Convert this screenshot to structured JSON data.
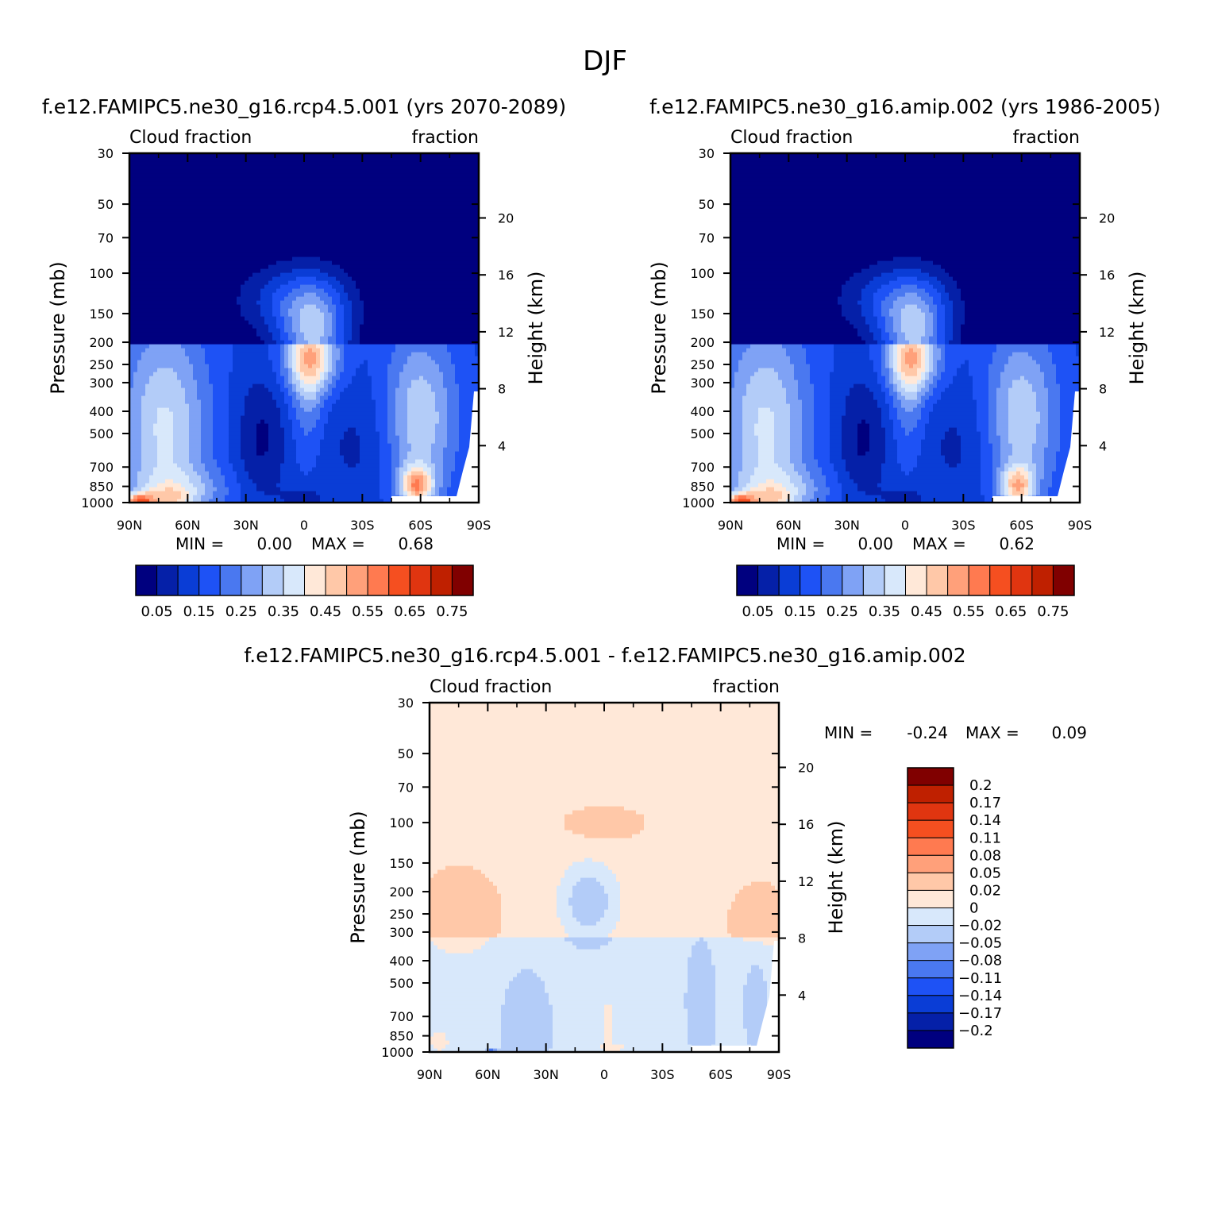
{
  "figure": {
    "title": "DJF",
    "x_ticks": [
      "90N",
      "60N",
      "30N",
      "0",
      "30S",
      "60S",
      "90S"
    ],
    "pressure_ticks": [
      "30",
      "50",
      "70",
      "100",
      "150",
      "200",
      "250",
      "300",
      "400",
      "500",
      "700",
      "850",
      "1000"
    ],
    "height_ticks": [
      "20",
      "16",
      "12",
      "8",
      "4"
    ],
    "ylabel_left": "Pressure (mb)",
    "ylabel_right": "Height (km)",
    "min_label": "MIN =",
    "max_label": "MAX ="
  },
  "chart_data": [
    {
      "type": "heatmap",
      "title": "f.e12.FAMIPC5.ne30_g16.rcp4.5.001 (yrs 2070-2089)",
      "subtitle_left": "Cloud fraction",
      "subtitle_right": "fraction",
      "x_range": [
        90,
        -90
      ],
      "y_range_mb": [
        1000,
        30
      ],
      "min": "0.00",
      "max": "0.68",
      "levels": [
        0.05,
        0.1,
        0.15,
        0.2,
        0.25,
        0.3,
        0.35,
        0.4,
        0.45,
        0.5,
        0.55,
        0.6,
        0.65,
        0.7,
        0.75
      ],
      "colorbar_labels": [
        "0.05",
        "0.15",
        "0.25",
        "0.35",
        "0.45",
        "0.55",
        "0.65",
        "0.75"
      ],
      "colors": [
        "#00007F",
        "#0520A8",
        "#0A3DD6",
        "#1E52F5",
        "#4A78F0",
        "#7FA2F5",
        "#B3CCF8",
        "#D8E8FB",
        "#FFE8D8",
        "#FFC8A8",
        "#FFA07A",
        "#FF7A50",
        "#F54F20",
        "#E03510",
        "#BF2000",
        "#800000"
      ]
    },
    {
      "type": "heatmap",
      "title": "f.e12.FAMIPC5.ne30_g16.amip.002 (yrs 1986-2005)",
      "subtitle_left": "Cloud fraction",
      "subtitle_right": "fraction",
      "x_range": [
        90,
        -90
      ],
      "y_range_mb": [
        1000,
        30
      ],
      "min": "0.00",
      "max": "0.62",
      "levels": [
        0.05,
        0.1,
        0.15,
        0.2,
        0.25,
        0.3,
        0.35,
        0.4,
        0.45,
        0.5,
        0.55,
        0.6,
        0.65,
        0.7,
        0.75
      ],
      "colorbar_labels": [
        "0.05",
        "0.15",
        "0.25",
        "0.35",
        "0.45",
        "0.55",
        "0.65",
        "0.75"
      ],
      "colors": [
        "#00007F",
        "#0520A8",
        "#0A3DD6",
        "#1E52F5",
        "#4A78F0",
        "#7FA2F5",
        "#B3CCF8",
        "#D8E8FB",
        "#FFE8D8",
        "#FFC8A8",
        "#FFA07A",
        "#FF7A50",
        "#F54F20",
        "#E03510",
        "#BF2000",
        "#800000"
      ]
    },
    {
      "type": "heatmap",
      "title": "f.e12.FAMIPC5.ne30_g16.rcp4.5.001 - f.e12.FAMIPC5.ne30_g16.amip.002",
      "subtitle_left": "Cloud fraction",
      "subtitle_right": "fraction",
      "x_range": [
        90,
        -90
      ],
      "y_range_mb": [
        1000,
        30
      ],
      "min": "-0.24",
      "max": "0.09",
      "levels": [
        -0.2,
        -0.17,
        -0.14,
        -0.11,
        -0.08,
        -0.05,
        -0.02,
        0,
        0.02,
        0.05,
        0.08,
        0.11,
        0.14,
        0.17,
        0.2
      ],
      "colorbar_labels": [
        "0.2",
        "0.17",
        "0.14",
        "0.11",
        "0.08",
        "0.05",
        "0.02",
        "0",
        "-0.02",
        "-0.05",
        "-0.08",
        "-0.11",
        "-0.14",
        "-0.17",
        "-0.2"
      ],
      "colors": [
        "#00007F",
        "#0520A8",
        "#0A3DD6",
        "#1E52F5",
        "#4A78F0",
        "#7FA2F5",
        "#B3CCF8",
        "#D8E8FB",
        "#FFE8D8",
        "#FFC8A8",
        "#FFA07A",
        "#FF7A50",
        "#F54F20",
        "#E03510",
        "#BF2000",
        "#800000"
      ]
    }
  ]
}
